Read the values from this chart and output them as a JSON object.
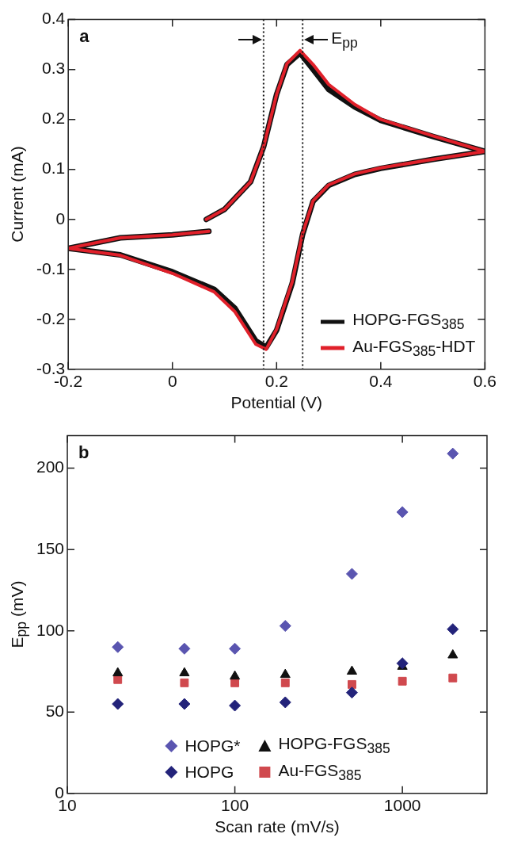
{
  "chart_data": [
    {
      "type": "line",
      "title": "a",
      "xlabel": "Potential (V)",
      "ylabel": "Current (mA)",
      "xlim": [
        -0.2,
        0.6
      ],
      "xticks": [
        -0.2,
        0,
        0.2,
        0.4,
        0.6
      ],
      "ylim": [
        -0.3,
        0.4
      ],
      "yticks": [
        -0.3,
        -0.2,
        -0.1,
        0,
        0.1,
        0.2,
        0.3,
        0.4
      ],
      "grid": false,
      "legend": "bottom right",
      "marker": "none",
      "line_style": "solid",
      "series": [
        {
          "name": "HOPG-FGS$_{385}$",
          "color": "#111111",
          "x": [
            0.065,
            0.1,
            0.15,
            0.175,
            0.2,
            0.22,
            0.245,
            0.27,
            0.3,
            0.35,
            0.4,
            0.5,
            0.6,
            0.5,
            0.4,
            0.35,
            0.3,
            0.27,
            0.25,
            0.23,
            0.2,
            0.18,
            0.16,
            0.12,
            0.08,
            0,
            -0.1,
            -0.2,
            -0.1,
            0,
            0.07
          ],
          "values": [
            0,
            0.02,
            0.075,
            0.145,
            0.25,
            0.31,
            0.333,
            0.3,
            0.26,
            0.225,
            0.198,
            0.166,
            0.136,
            0.12,
            0.102,
            0.09,
            0.068,
            0.036,
            -0.03,
            -0.128,
            -0.222,
            -0.256,
            -0.243,
            -0.178,
            -0.14,
            -0.105,
            -0.071,
            -0.058,
            -0.037,
            -0.031,
            -0.024
          ]
        },
        {
          "name": "Au-FGS$_{385}$-HDT",
          "color": "#e0202a",
          "x": [
            0.065,
            0.1,
            0.15,
            0.175,
            0.2,
            0.22,
            0.245,
            0.27,
            0.3,
            0.35,
            0.4,
            0.5,
            0.6,
            0.5,
            0.4,
            0.35,
            0.3,
            0.27,
            0.25,
            0.23,
            0.2,
            0.18,
            0.16,
            0.12,
            0.08,
            0,
            -0.1,
            -0.2,
            -0.1,
            0,
            0.07
          ],
          "values": [
            0,
            0.02,
            0.075,
            0.145,
            0.25,
            0.312,
            0.338,
            0.31,
            0.27,
            0.23,
            0.2,
            0.167,
            0.136,
            0.12,
            0.103,
            0.091,
            0.069,
            0.037,
            -0.028,
            -0.125,
            -0.22,
            -0.26,
            -0.25,
            -0.185,
            -0.145,
            -0.108,
            -0.072,
            -0.058,
            -0.037,
            -0.031,
            -0.024
          ]
        }
      ],
      "ref_lines": [
        {
          "axis": "x",
          "value": 0.175,
          "line_style": "dotted",
          "color": "#111111"
        },
        {
          "axis": "x",
          "value": 0.25,
          "line_style": "dotted",
          "color": "#111111"
        }
      ],
      "annotations": [
        {
          "text": "E$_{pp}$",
          "x": 0.25,
          "y": 0.36
        }
      ]
    },
    {
      "type": "scatter",
      "title": "b",
      "xlabel": "Scan rate (mV/s)",
      "ylabel": "E$_{pp}$ (mV)",
      "log": "x",
      "xlim": [
        10,
        3200
      ],
      "xticks": [
        10,
        100,
        1000
      ],
      "ylim": [
        0,
        220
      ],
      "yticks": [
        0,
        50,
        100,
        150,
        200
      ],
      "grid": false,
      "legend": "bottom",
      "x": [
        20,
        50,
        100,
        200,
        500,
        1000,
        2000
      ],
      "series": [
        {
          "name": "HOPG*",
          "color": "#5a55b0",
          "marker": "diamond",
          "values": [
            90,
            89,
            89,
            103,
            135,
            173,
            209
          ]
        },
        {
          "name": "HOPG",
          "color": "#23237a",
          "marker": "diamond",
          "values": [
            55,
            55,
            54,
            56,
            62,
            80,
            101
          ]
        },
        {
          "name": "HOPG-FGS$_{385}$",
          "color": "#111111",
          "marker": "triangle",
          "values": [
            74,
            74,
            72,
            73,
            75,
            78,
            85
          ]
        },
        {
          "name": "Au-FGS$_{385}$",
          "color": "#d0494e",
          "marker": "square",
          "values": [
            70,
            68,
            68,
            68,
            67,
            69,
            71
          ]
        }
      ]
    }
  ]
}
